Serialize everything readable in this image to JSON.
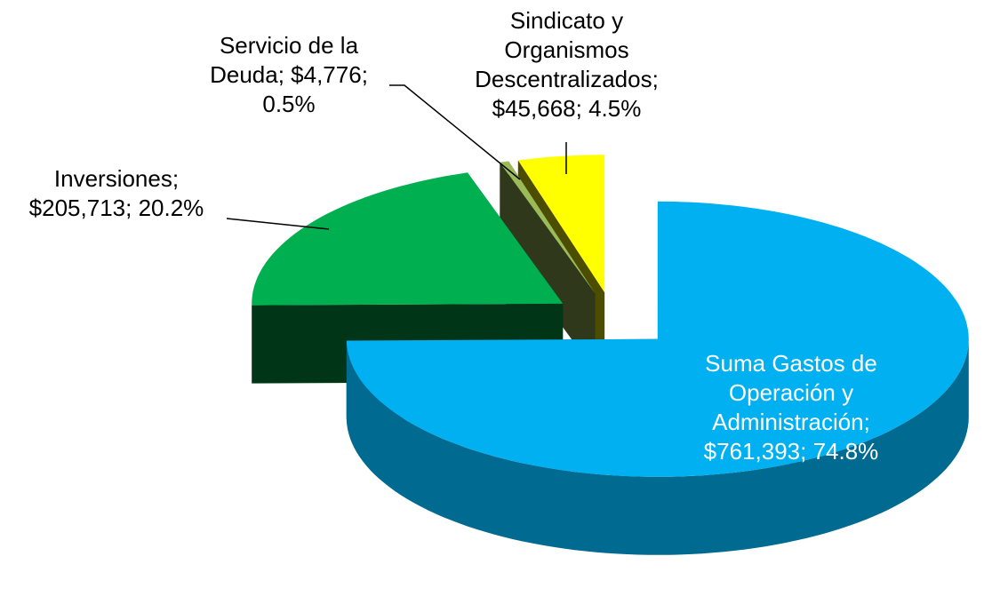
{
  "chart_data": {
    "type": "pie",
    "categories": [
      "Suma Gastos de Operación y Administración",
      "Inversiones",
      "Servicio de la Deuda",
      "Sindicato y Organismos Descentralizados"
    ],
    "values": [
      761393,
      205713,
      4776,
      45668
    ],
    "value_labels": [
      "$761,393",
      "$205,713",
      "$4,776",
      "$45,668"
    ],
    "percentages": [
      74.8,
      20.2,
      0.5,
      4.5
    ],
    "percentage_labels": [
      "74.8%",
      "20.2%",
      "0.5%",
      "4.5%"
    ],
    "colors": [
      "#00b0f0",
      "#00b050",
      "#9bbb59",
      "#ffff00"
    ]
  }
}
